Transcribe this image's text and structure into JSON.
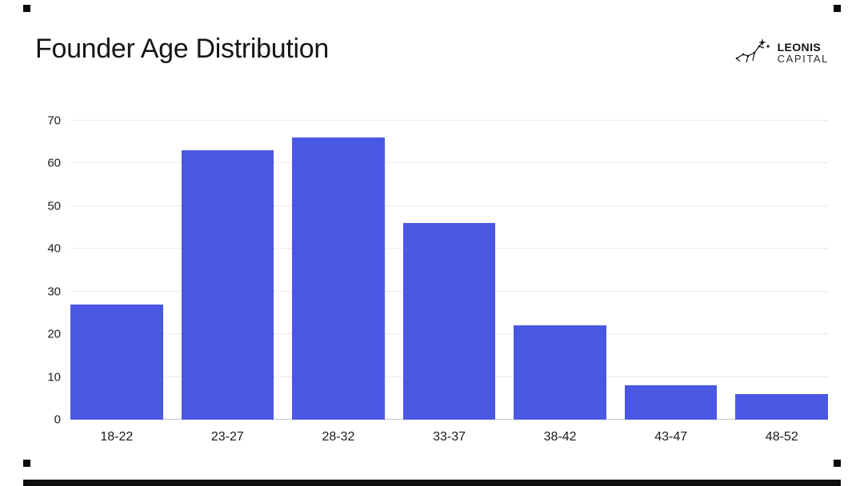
{
  "slide": {
    "title": "Founder Age Distribution",
    "logo": {
      "line1": "LEONIS",
      "line2": "CAPITAL"
    }
  },
  "chart_data": {
    "type": "bar",
    "title": "Founder Age Distribution",
    "categories": [
      "18-22",
      "23-27",
      "28-32",
      "33-37",
      "38-42",
      "43-47",
      "48-52"
    ],
    "values": [
      27,
      63,
      66,
      46,
      22,
      8,
      6
    ],
    "xlabel": "",
    "ylabel": "",
    "ylim": [
      0,
      70
    ],
    "yticks": [
      0,
      10,
      20,
      30,
      40,
      50,
      60,
      70
    ],
    "bar_color": "#4a57e3",
    "grid": "horizontal-dotted",
    "legend": "none"
  }
}
